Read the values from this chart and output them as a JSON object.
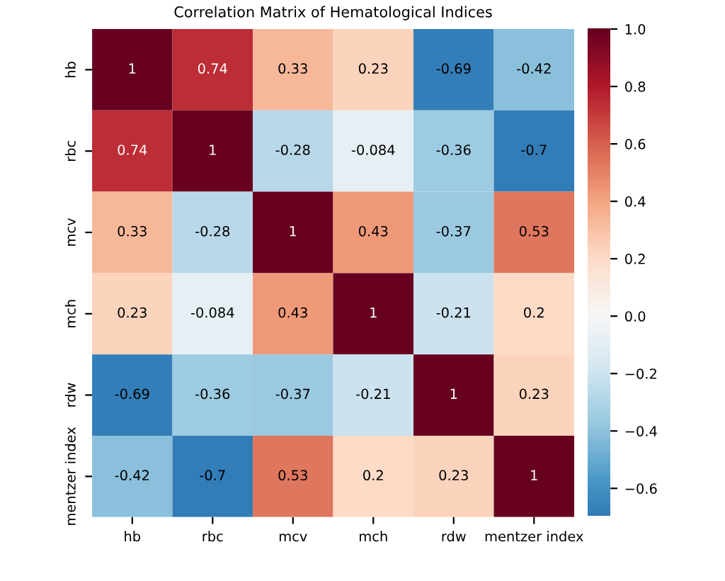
{
  "chart_data": {
    "type": "heatmap",
    "title": "Correlation Matrix of Hematological Indices",
    "categories": [
      "hb",
      "rbc",
      "mcv",
      "mch",
      "rdw",
      "mentzer index"
    ],
    "y_categories": [
      "hb",
      "rbc",
      "mcv",
      "mch",
      "rdw",
      "mentzer index"
    ],
    "cells": [
      [
        1,
        0.74,
        0.33,
        0.23,
        -0.69,
        -0.42
      ],
      [
        0.74,
        1,
        -0.28,
        -0.084,
        -0.36,
        -0.7
      ],
      [
        0.33,
        -0.28,
        1,
        0.43,
        -0.37,
        0.53
      ],
      [
        0.23,
        -0.084,
        0.43,
        1,
        -0.21,
        0.2
      ],
      [
        -0.69,
        -0.36,
        -0.37,
        -0.21,
        1,
        0.23
      ],
      [
        -0.42,
        -0.7,
        0.53,
        0.2,
        0.23,
        1
      ]
    ],
    "data_labels": true,
    "clim": [
      -0.7,
      1
    ],
    "cticks": [
      {
        "value": -0.6,
        "label": "−0.6"
      },
      {
        "value": -0.4,
        "label": "−0.4"
      },
      {
        "value": -0.2,
        "label": "−0.2"
      },
      {
        "value": 0,
        "label": "0.0"
      },
      {
        "value": 0.2,
        "label": "0.2"
      },
      {
        "value": 0.4,
        "label": "0.4"
      },
      {
        "value": 0.6,
        "label": "0.6"
      },
      {
        "value": 0.8,
        "label": "0.8"
      },
      {
        "value": 1,
        "label": "1.0"
      }
    ]
  }
}
